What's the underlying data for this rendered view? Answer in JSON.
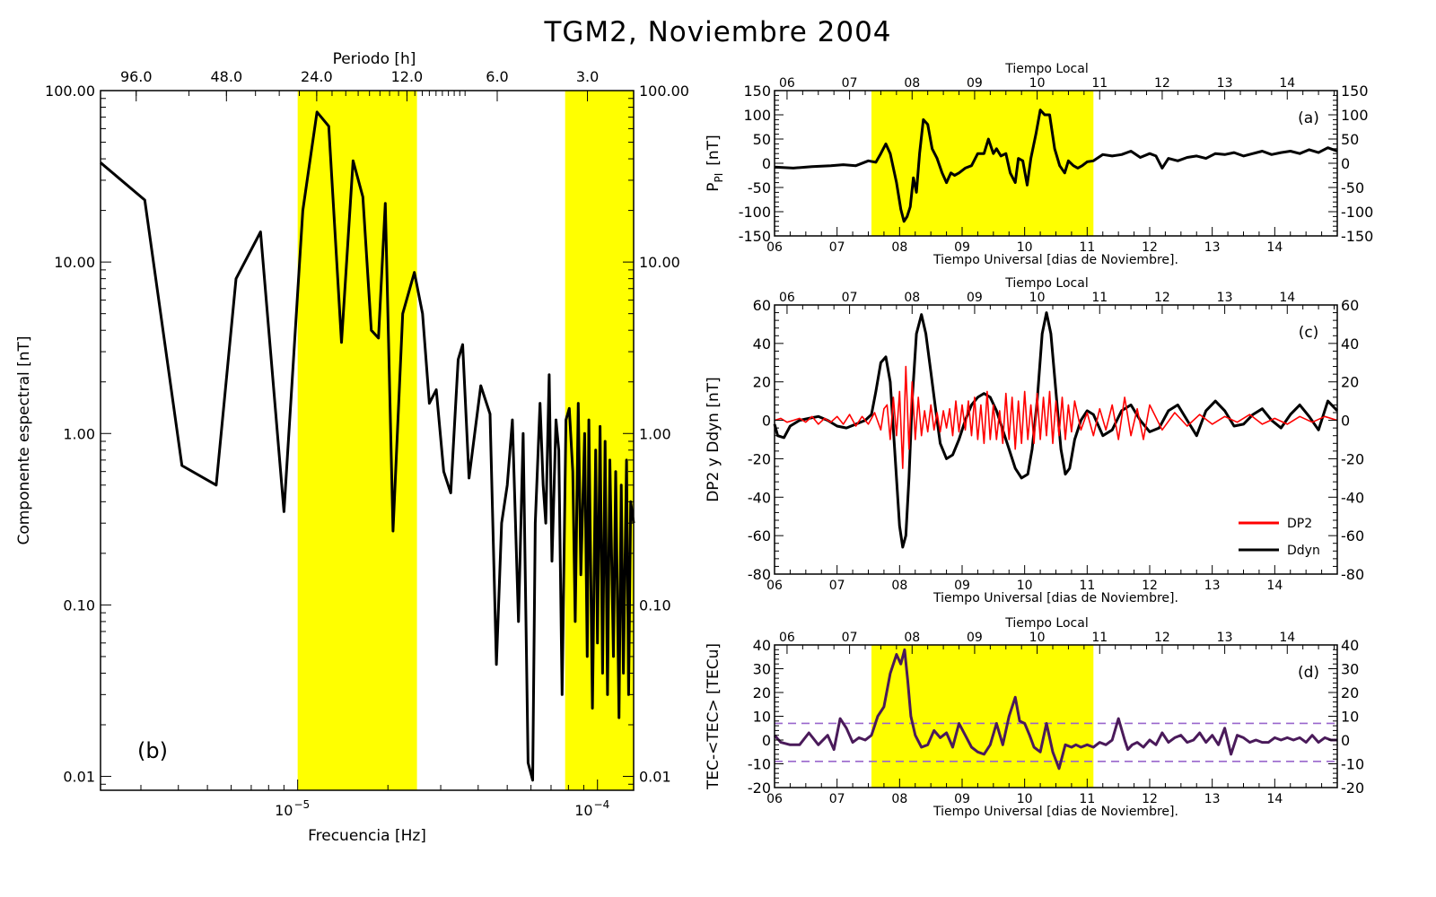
{
  "title": "TGM2, Noviembre 2004",
  "colors": {
    "highlight": "#ffff00",
    "dp2": "#ff0000",
    "ddyn": "#000000",
    "tec": "#4a1a5a",
    "tec_band": "#9966cc"
  },
  "chart_data": [
    {
      "id": "b",
      "type": "line",
      "panel_label": "(b)",
      "xlabel": "Frecuencia [Hz]",
      "ylabel": "Componente espectral [nT]",
      "top_label": "Periodo [h]",
      "xscale": "log",
      "yscale": "log",
      "xlim": [
        2.2e-06,
        0.000132
      ],
      "ylim": [
        0.0083,
        100
      ],
      "x_ticks": [
        {
          "value": 1e-05,
          "base": "10",
          "exp": "−5"
        },
        {
          "value": 0.0001,
          "base": "10",
          "exp": "−4"
        }
      ],
      "y_tick_labels": [
        "100.00",
        "10.00",
        "1.00",
        "0.10",
        "0.01"
      ],
      "y_tick_values": [
        100,
        10,
        1,
        0.1,
        0.01
      ],
      "top_tick_labels": [
        "96.0",
        "48.0",
        "24.0",
        "12.0",
        "6.0",
        "3.0"
      ],
      "top_tick_values": [
        96,
        48,
        24,
        12,
        6,
        3
      ],
      "highlight_bands": [
        [
          1e-05,
          2.5e-05
        ],
        [
          7.8e-05,
          0.000132
        ]
      ],
      "series": [
        {
          "x": [
            2.2e-06,
            3.09e-06,
            4.11e-06,
            5.35e-06,
            6.23e-06,
            7.52e-06,
            9e-06,
            1.04e-05,
            1.16e-05,
            1.27e-05,
            1.4e-05,
            1.53e-05,
            1.65e-05,
            1.76e-05,
            1.86e-05,
            1.96e-05,
            2.08e-05,
            2.24e-05,
            2.45e-05,
            2.61e-05,
            2.75e-05,
            2.9e-05,
            3.07e-05,
            3.24e-05,
            3.43e-05,
            3.55e-05,
            3.73e-05,
            4.08e-05,
            4.38e-05,
            4.6e-05,
            4.79e-05,
            5e-05,
            5.2e-05,
            5.45e-05,
            5.65e-05,
            5.87e-05,
            6.08e-05,
            6.2e-05,
            6.43e-05,
            6.59e-05,
            6.72e-05,
            6.9e-05,
            7.05e-05,
            7.27e-05,
            7.43e-05,
            7.62e-05,
            7.85e-05,
            8.05e-05,
            8.27e-05,
            8.43e-05,
            8.63e-05,
            8.8e-05,
            9.06e-05,
            9.24e-05,
            9.36e-05,
            9.62e-05,
            9.86e-05,
            0.0001,
            0.000102,
            0.000104,
            0.000106,
            0.000108,
            0.00011,
            0.000113,
            0.000115,
            0.000118,
            0.00012,
            0.000122,
            0.000125,
            0.000127,
            0.000129,
            0.000132
          ],
          "y": [
            38,
            23,
            0.65,
            0.5,
            8,
            15,
            0.35,
            20,
            75,
            62,
            3.4,
            39,
            24,
            4,
            3.6,
            22,
            0.27,
            5,
            8.7,
            5,
            1.5,
            1.8,
            0.6,
            0.45,
            2.7,
            3.3,
            0.55,
            1.9,
            1.3,
            0.045,
            0.3,
            0.5,
            1.2,
            0.08,
            1.0,
            0.012,
            0.0095,
            0.3,
            1.5,
            0.5,
            0.3,
            2.2,
            0.18,
            1.2,
            0.8,
            0.03,
            1.2,
            1.4,
            0.6,
            0.08,
            1.5,
            0.15,
            1.0,
            0.05,
            1.2,
            0.025,
            0.8,
            0.06,
            1.1,
            0.04,
            0.9,
            0.03,
            0.7,
            0.05,
            0.6,
            0.022,
            0.5,
            0.04,
            0.7,
            0.03,
            0.4,
            0.3
          ]
        }
      ]
    },
    {
      "id": "a",
      "type": "line",
      "panel_label": "(a)",
      "ylabel_main": "P",
      "ylabel_sub": "PI",
      "ylabel_unit": "[nT]",
      "xlabel": "Tiempo Universal [dias de Noviembre].",
      "top_label": "Tiempo Local",
      "xlim": [
        6,
        15
      ],
      "ylim": [
        -150,
        150
      ],
      "y_ticks": [
        150,
        100,
        50,
        0,
        -50,
        -100,
        -150
      ],
      "x_tick_labels": [
        "06",
        "07",
        "08",
        "09",
        "10",
        "11",
        "12",
        "13",
        "14"
      ],
      "top_tick_labels": [
        "06",
        "07",
        "08",
        "09",
        "10",
        "11",
        "12",
        "13",
        "14"
      ],
      "highlight_bands": [
        [
          7.55,
          11.1
        ]
      ],
      "series": [
        {
          "x": [
            6.0,
            6.3,
            6.6,
            6.9,
            7.1,
            7.3,
            7.5,
            7.62,
            7.7,
            7.78,
            7.85,
            7.95,
            8.02,
            8.07,
            8.12,
            8.17,
            8.22,
            8.27,
            8.32,
            8.38,
            8.45,
            8.52,
            8.6,
            8.68,
            8.75,
            8.82,
            8.88,
            8.95,
            9.05,
            9.15,
            9.25,
            9.35,
            9.42,
            9.5,
            9.55,
            9.62,
            9.7,
            9.77,
            9.85,
            9.9,
            9.97,
            10.04,
            10.1,
            10.18,
            10.25,
            10.32,
            10.4,
            10.48,
            10.56,
            10.64,
            10.7,
            10.78,
            10.85,
            10.92,
            11.0,
            11.1,
            11.25,
            11.4,
            11.55,
            11.7,
            11.85,
            12.0,
            12.1,
            12.2,
            12.3,
            12.45,
            12.6,
            12.75,
            12.9,
            13.05,
            13.2,
            13.35,
            13.5,
            13.65,
            13.8,
            13.95,
            14.1,
            14.25,
            14.4,
            14.55,
            14.7,
            14.85,
            15.0
          ],
          "y": [
            -8,
            -10,
            -7,
            -5,
            -3,
            -5,
            5,
            2,
            20,
            40,
            20,
            -40,
            -95,
            -120,
            -110,
            -90,
            -30,
            -60,
            20,
            90,
            80,
            30,
            10,
            -20,
            -40,
            -20,
            -25,
            -20,
            -10,
            -5,
            20,
            20,
            50,
            20,
            30,
            15,
            20,
            -20,
            -40,
            10,
            5,
            -45,
            10,
            60,
            110,
            100,
            100,
            30,
            -5,
            -20,
            5,
            -5,
            -10,
            -5,
            3,
            5,
            18,
            15,
            18,
            25,
            12,
            20,
            15,
            -10,
            10,
            5,
            12,
            15,
            10,
            20,
            18,
            22,
            15,
            20,
            25,
            18,
            22,
            25,
            20,
            28,
            22,
            32,
            25
          ]
        }
      ]
    },
    {
      "id": "c",
      "type": "line",
      "panel_label": "(c)",
      "ylabel": "DP2 y Ddyn [nT]",
      "xlabel": "Tiempo Universal [dias de Noviembre].",
      "top_label": "Tiempo Local",
      "xlim": [
        6,
        15
      ],
      "ylim": [
        -80,
        60
      ],
      "y_ticks": [
        60,
        40,
        20,
        0,
        -20,
        -40,
        -60,
        -80
      ],
      "x_tick_labels": [
        "06",
        "07",
        "08",
        "09",
        "10",
        "11",
        "12",
        "13",
        "14"
      ],
      "top_tick_labels": [
        "06",
        "07",
        "08",
        "09",
        "10",
        "11",
        "12",
        "13",
        "14"
      ],
      "legend": [
        "DP2",
        "Ddyn"
      ],
      "legend_position": "lower-right",
      "series": [
        {
          "name": "Ddyn",
          "x": [
            6.0,
            6.05,
            6.15,
            6.25,
            6.4,
            6.55,
            6.7,
            6.85,
            7.0,
            7.15,
            7.3,
            7.45,
            7.55,
            7.62,
            7.7,
            7.78,
            7.85,
            7.92,
            8.0,
            8.05,
            8.1,
            8.15,
            8.2,
            8.27,
            8.35,
            8.42,
            8.5,
            8.58,
            8.65,
            8.75,
            8.85,
            8.95,
            9.05,
            9.15,
            9.25,
            9.35,
            9.45,
            9.55,
            9.65,
            9.75,
            9.85,
            9.95,
            10.05,
            10.12,
            10.2,
            10.28,
            10.35,
            10.42,
            10.5,
            10.58,
            10.65,
            10.72,
            10.8,
            10.9,
            11.0,
            11.1,
            11.25,
            11.4,
            11.55,
            11.7,
            11.85,
            12.0,
            12.15,
            12.3,
            12.45,
            12.6,
            12.75,
            12.9,
            13.05,
            13.2,
            13.35,
            13.5,
            13.65,
            13.8,
            13.95,
            14.1,
            14.25,
            14.4,
            14.55,
            14.7,
            14.85,
            15.0
          ],
          "y": [
            -2,
            -8,
            -9,
            -3,
            0,
            1,
            2,
            0,
            -3,
            -4,
            -2,
            0,
            3,
            15,
            30,
            33,
            20,
            -15,
            -55,
            -66,
            -60,
            -30,
            10,
            45,
            55,
            45,
            25,
            5,
            -12,
            -20,
            -18,
            -10,
            0,
            8,
            12,
            14,
            12,
            5,
            -5,
            -15,
            -25,
            -30,
            -28,
            -15,
            10,
            45,
            56,
            45,
            15,
            -15,
            -28,
            -25,
            -10,
            0,
            5,
            3,
            -8,
            -5,
            5,
            8,
            0,
            -6,
            -4,
            5,
            8,
            0,
            -8,
            5,
            10,
            5,
            -3,
            -2,
            3,
            6,
            0,
            -4,
            3,
            8,
            2,
            -5,
            10,
            5
          ]
        },
        {
          "name": "DP2",
          "x": [
            6.0,
            6.1,
            6.2,
            6.3,
            6.4,
            6.5,
            6.6,
            6.7,
            6.8,
            6.9,
            7.0,
            7.1,
            7.2,
            7.3,
            7.4,
            7.5,
            7.6,
            7.7,
            7.75,
            7.8,
            7.85,
            7.9,
            7.95,
            8.0,
            8.05,
            8.1,
            8.15,
            8.2,
            8.25,
            8.3,
            8.35,
            8.4,
            8.45,
            8.5,
            8.55,
            8.6,
            8.65,
            8.7,
            8.75,
            8.8,
            8.85,
            8.9,
            8.95,
            9.0,
            9.05,
            9.1,
            9.15,
            9.2,
            9.25,
            9.3,
            9.35,
            9.4,
            9.45,
            9.5,
            9.55,
            9.6,
            9.65,
            9.7,
            9.75,
            9.8,
            9.85,
            9.9,
            9.95,
            10.0,
            10.05,
            10.1,
            10.15,
            10.2,
            10.25,
            10.3,
            10.35,
            10.4,
            10.45,
            10.5,
            10.55,
            10.6,
            10.65,
            10.7,
            10.75,
            10.8,
            10.9,
            11.0,
            11.1,
            11.2,
            11.3,
            11.4,
            11.5,
            11.6,
            11.7,
            11.8,
            11.9,
            12.0,
            12.2,
            12.4,
            12.6,
            12.8,
            13.0,
            13.2,
            13.4,
            13.6,
            13.8,
            14.0,
            14.2,
            14.4,
            14.6,
            14.8,
            15.0
          ],
          "y": [
            0,
            1,
            -1,
            0,
            1,
            -1,
            2,
            -2,
            1,
            -1,
            2,
            -2,
            3,
            -3,
            2,
            -2,
            4,
            -5,
            6,
            8,
            -10,
            12,
            -8,
            15,
            -25,
            28,
            -15,
            20,
            -10,
            12,
            -8,
            5,
            -6,
            8,
            -5,
            4,
            -6,
            5,
            -4,
            6,
            -8,
            10,
            -6,
            8,
            -5,
            10,
            -8,
            12,
            -10,
            8,
            -12,
            15,
            -10,
            8,
            -10,
            5,
            -12,
            14,
            -10,
            12,
            -15,
            10,
            -12,
            15,
            -10,
            8,
            -12,
            14,
            -10,
            12,
            -8,
            15,
            -12,
            10,
            -8,
            12,
            -10,
            8,
            -6,
            10,
            -5,
            4,
            -8,
            6,
            -5,
            8,
            -10,
            12,
            -8,
            6,
            -10,
            8,
            -5,
            4,
            -3,
            3,
            -2,
            2,
            -1,
            3,
            -2,
            1,
            -2,
            2,
            -1,
            2,
            0
          ]
        }
      ]
    },
    {
      "id": "d",
      "type": "line",
      "panel_label": "(d)",
      "ylabel": "TEC-<TEC> [TECu]",
      "xlabel": "Tiempo Universal [dias de Noviembre].",
      "top_label": "Tiempo Local",
      "xlim": [
        6,
        15
      ],
      "ylim": [
        -20,
        40
      ],
      "y_ticks": [
        40,
        30,
        20,
        10,
        0,
        -10,
        -20
      ],
      "x_tick_labels": [
        "06",
        "07",
        "08",
        "09",
        "10",
        "11",
        "12",
        "13",
        "14"
      ],
      "top_tick_labels": [
        "06",
        "07",
        "08",
        "09",
        "10",
        "11",
        "12",
        "13",
        "14"
      ],
      "highlight_bands": [
        [
          7.55,
          11.1
        ]
      ],
      "reference_lines": [
        7,
        -9
      ],
      "series": [
        {
          "x": [
            6.0,
            6.1,
            6.25,
            6.4,
            6.55,
            6.7,
            6.85,
            6.95,
            7.05,
            7.15,
            7.25,
            7.35,
            7.45,
            7.55,
            7.65,
            7.75,
            7.85,
            7.95,
            8.02,
            8.08,
            8.13,
            8.18,
            8.25,
            8.35,
            8.45,
            8.55,
            8.65,
            8.75,
            8.85,
            8.95,
            9.05,
            9.15,
            9.25,
            9.35,
            9.45,
            9.55,
            9.65,
            9.75,
            9.85,
            9.92,
            10.0,
            10.08,
            10.15,
            10.25,
            10.35,
            10.45,
            10.55,
            10.65,
            10.75,
            10.82,
            10.9,
            11.0,
            11.1,
            11.2,
            11.3,
            11.4,
            11.5,
            11.6,
            11.65,
            11.72,
            11.8,
            11.9,
            12.0,
            12.1,
            12.2,
            12.3,
            12.4,
            12.5,
            12.6,
            12.7,
            12.8,
            12.9,
            13.0,
            13.1,
            13.2,
            13.3,
            13.4,
            13.5,
            13.6,
            13.7,
            13.8,
            13.9,
            14.0,
            14.1,
            14.2,
            14.3,
            14.4,
            14.5,
            14.6,
            14.7,
            14.8,
            14.9,
            15.0
          ],
          "y": [
            2,
            -1,
            -2,
            -2,
            3,
            -2,
            2,
            -4,
            9,
            5,
            -1,
            1,
            0,
            2,
            10,
            14,
            28,
            36,
            32,
            38,
            25,
            10,
            2,
            -3,
            -2,
            4,
            1,
            3,
            -3,
            7,
            2,
            -3,
            -5,
            -6,
            -2,
            7,
            -2,
            10,
            18,
            8,
            7,
            2,
            -3,
            -5,
            7,
            -5,
            -12,
            -2,
            -3,
            -2,
            -3,
            -2,
            -3,
            -1,
            -2,
            0,
            9,
            0,
            -4,
            -2,
            -1,
            -3,
            0,
            -2,
            3,
            -1,
            1,
            2,
            -1,
            0,
            3,
            -1,
            2,
            -2,
            5,
            -6,
            2,
            1,
            -1,
            0,
            -1,
            -1,
            1,
            0,
            1,
            0,
            1,
            -1,
            2,
            -1,
            1,
            0,
            0
          ]
        }
      ]
    }
  ]
}
